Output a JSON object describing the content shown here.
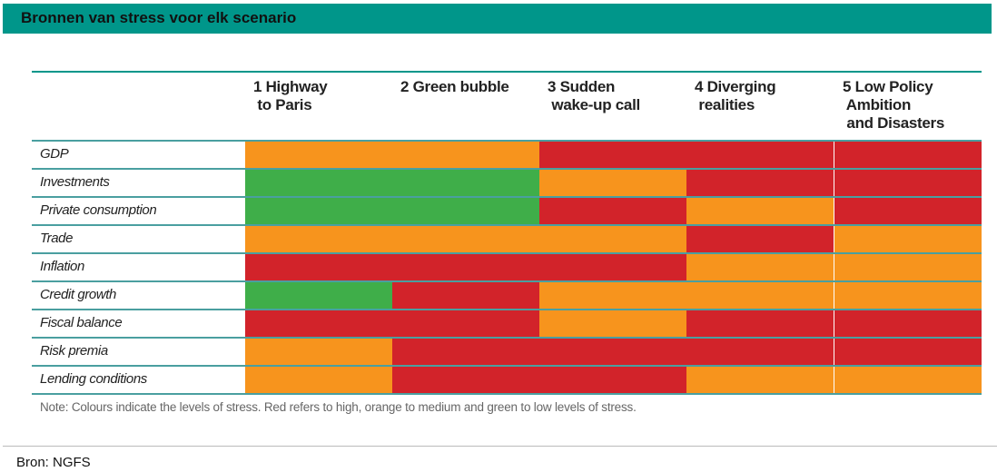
{
  "title": "Bronnen van stress voor elk scenario",
  "note": "Note: Colours indicate the levels of stress. Red refers to high, orange to medium and green to low levels of stress.",
  "source": "Bron: NGFS",
  "colors": {
    "high": "#d2232a",
    "medium": "#f7941d",
    "low": "#3fae49",
    "accent": "#00968a"
  },
  "chart_data": {
    "type": "table",
    "title": "Bronnen van stress voor elk scenario",
    "columns": [
      "1 Highway\n to Paris",
      "2 Green bubble",
      "3 Sudden\n wake-up call",
      "4 Diverging\n realities",
      "5 Low Policy\n Ambition\n and Disasters"
    ],
    "rows": [
      {
        "label": "GDP",
        "levels": [
          "medium",
          "medium",
          "high",
          "high",
          "high"
        ]
      },
      {
        "label": "Investments",
        "levels": [
          "low",
          "low",
          "medium",
          "high",
          "high"
        ]
      },
      {
        "label": "Private consumption",
        "levels": [
          "low",
          "low",
          "high",
          "medium",
          "high"
        ]
      },
      {
        "label": "Trade",
        "levels": [
          "medium",
          "medium",
          "medium",
          "high",
          "medium"
        ]
      },
      {
        "label": "Inflation",
        "levels": [
          "high",
          "high",
          "high",
          "medium",
          "medium"
        ]
      },
      {
        "label": "Credit growth",
        "levels": [
          "low",
          "high",
          "medium",
          "medium",
          "medium"
        ]
      },
      {
        "label": "Fiscal balance",
        "levels": [
          "high",
          "high",
          "medium",
          "high",
          "high"
        ]
      },
      {
        "label": "Risk premia",
        "levels": [
          "medium",
          "high",
          "high",
          "high",
          "high"
        ]
      },
      {
        "label": "Lending conditions",
        "levels": [
          "medium",
          "high",
          "high",
          "medium",
          "medium"
        ]
      }
    ],
    "legend": {
      "high": "Red",
      "medium": "Orange",
      "low": "Green"
    }
  }
}
